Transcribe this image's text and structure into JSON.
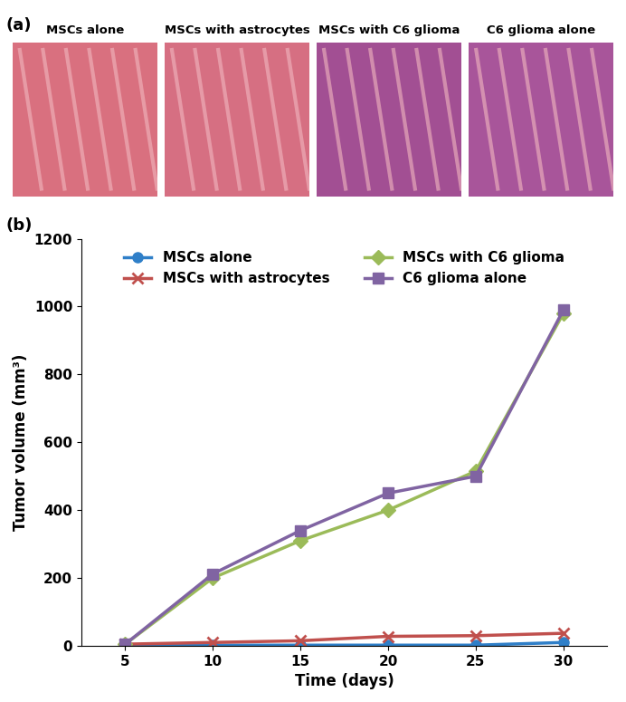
{
  "panel_a": {
    "panel_label": "(a)",
    "image_titles": [
      "MSCs alone",
      "MSCs with astrocytes",
      "MSCs with C6 glioma",
      "C6 glioma alone"
    ]
  },
  "chart_data": {
    "type": "line",
    "panel_label": "(b)",
    "x_label": "Time (days)",
    "y_label": "Tumor volume (mm³)",
    "x": [
      5,
      10,
      15,
      20,
      25,
      30
    ],
    "series": [
      {
        "name": "MSCs alone",
        "color": "#2f7fc8",
        "marker": "circle",
        "values": [
          2,
          2,
          2,
          2,
          2,
          10
        ]
      },
      {
        "name": "MSCs with astrocytes",
        "color": "#c0504d",
        "marker": "x",
        "values": [
          5,
          10,
          15,
          28,
          30,
          37
        ]
      },
      {
        "name": "MSCs with C6 glioma",
        "color": "#9bbb59",
        "marker": "diamond",
        "values": [
          5,
          200,
          310,
          400,
          515,
          980
        ]
      },
      {
        "name": "C6 glioma alone",
        "color": "#8064a2",
        "marker": "square",
        "values": [
          5,
          212,
          340,
          450,
          500,
          990
        ]
      }
    ],
    "xlim": [
      2.5,
      32.5
    ],
    "xticks": [
      5,
      10,
      15,
      20,
      25,
      30
    ],
    "ylim": [
      0,
      1200
    ],
    "yticks": [
      0,
      200,
      400,
      600,
      800,
      1000,
      1200
    ],
    "grid": false,
    "legend": "upper center"
  }
}
